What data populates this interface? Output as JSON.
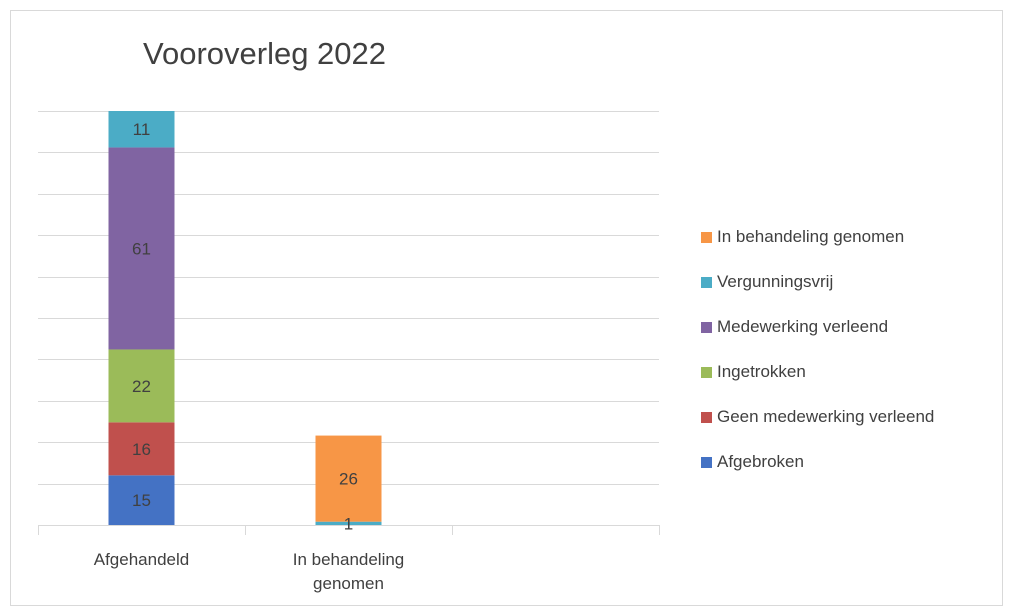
{
  "chart_data": {
    "type": "bar",
    "stacked": true,
    "title": "Vooroverleg 2022",
    "categories": [
      "Afgehandeld",
      "In behandeling\ngenomen"
    ],
    "series": [
      {
        "name": "Afgebroken",
        "color": "#4472c4",
        "values": [
          15,
          0
        ]
      },
      {
        "name": "Geen medewerking verleend",
        "color": "#c0504d",
        "values": [
          16,
          0
        ]
      },
      {
        "name": "Ingetrokken",
        "color": "#9bbb59",
        "values": [
          22,
          0
        ]
      },
      {
        "name": "Medewerking verleend",
        "color": "#8064a2",
        "values": [
          61,
          0
        ]
      },
      {
        "name": "Vergunningsvrij",
        "color": "#4bacc6",
        "values": [
          11,
          1
        ]
      },
      {
        "name": "In behandeling genomen",
        "color": "#f79646",
        "values": [
          0,
          26
        ]
      }
    ],
    "ylim": [
      0,
      125
    ],
    "ticks": 10,
    "grid": true,
    "legend_position": "right"
  }
}
